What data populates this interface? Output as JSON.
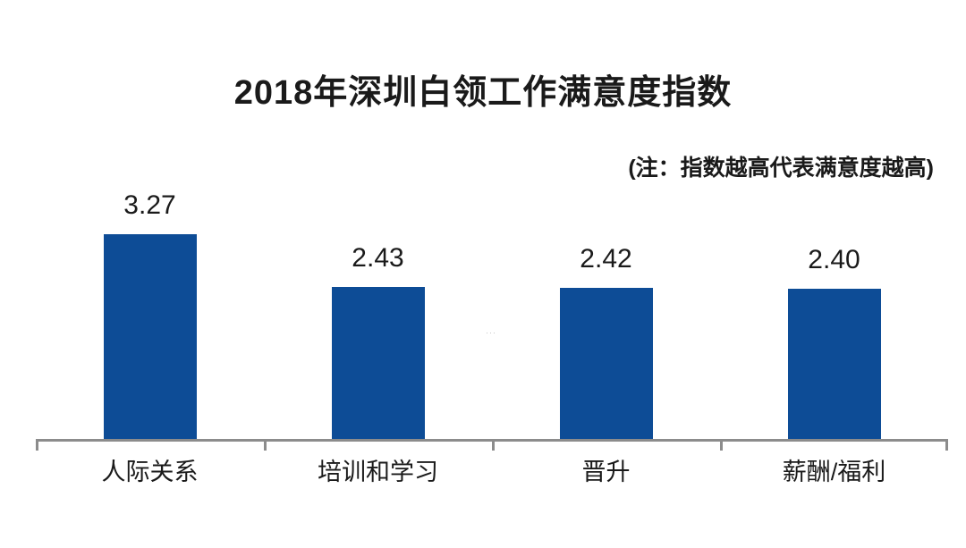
{
  "page": {
    "background": "#ffffff",
    "text_color": "#1a1a1a"
  },
  "chart_data": {
    "type": "bar",
    "title": "2018年深圳白领工作满意度指数",
    "note": "(注：指数越高代表满意度越高)",
    "categories": [
      "人际关系",
      "培训和学习",
      "晋升",
      "薪酬/福利"
    ],
    "values": [
      3.27,
      2.43,
      2.42,
      2.4
    ],
    "value_labels": [
      "3.27",
      "2.43",
      "2.42",
      "2.40"
    ],
    "xlabel": "",
    "ylabel": "",
    "ylim": [
      0,
      3.5
    ],
    "grid": false,
    "legend_position": "none",
    "bar_color": "#0d4c96",
    "axis_color": "#8c8c8c",
    "watermark": "···"
  }
}
